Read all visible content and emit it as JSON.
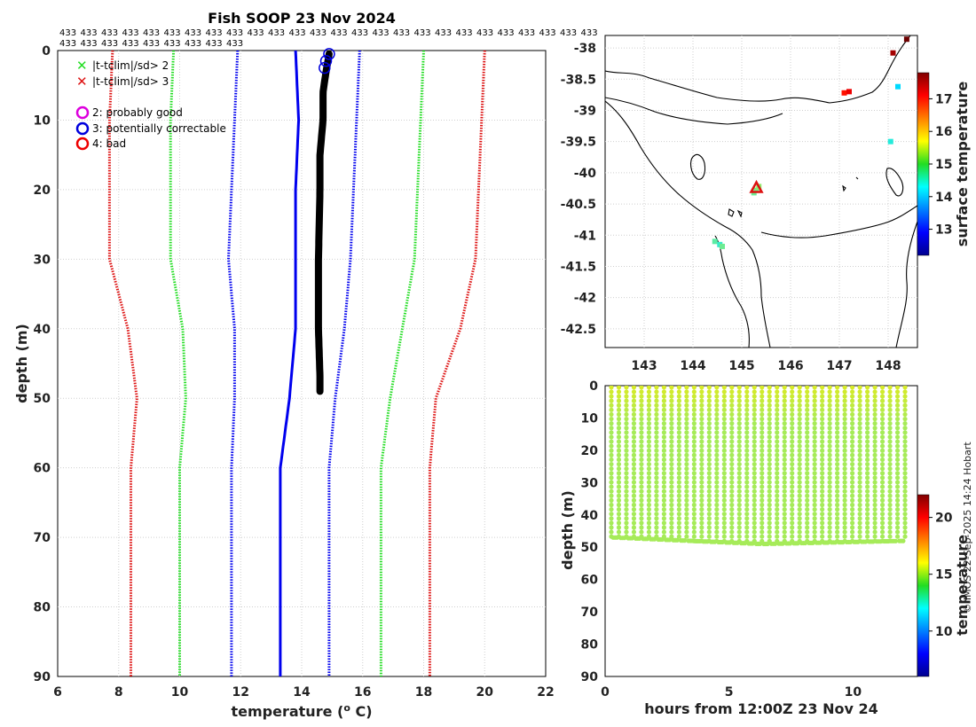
{
  "title": "Fish SOOP 23 Nov 2024",
  "profile_ids_row1": [
    "433",
    "433",
    "433",
    "433",
    "433",
    "433",
    "433",
    "433",
    "433",
    "433",
    "433",
    "433",
    "433",
    "433",
    "433",
    "433",
    "433",
    "433",
    "433",
    "433",
    "433",
    "433",
    "433",
    "433",
    "433",
    "433"
  ],
  "profile_ids_row2": [
    "433",
    "433",
    "433",
    "433",
    "433",
    "433",
    "433",
    "433",
    "433"
  ],
  "credit": "© IMOS 22-Sep-2025 14:24 Hobart",
  "colors": {
    "sd2": "#22dd22",
    "sd3": "#dd1111",
    "qc2": "#dd00dd",
    "qc3": "#0000dd",
    "qc4": "#ee0000",
    "profile": "#000000",
    "clim": "#0000ee"
  },
  "legend": {
    "sd2": "|t-tclim|/sd> 2",
    "sd3": "|t-tclim|/sd> 3",
    "qc2": "2: probably good",
    "qc3": "3: potentially correctable",
    "qc4": "4: bad"
  },
  "chart_data": [
    {
      "type": "line",
      "name": "temperature-profile",
      "xlabel": "temperature (°C)",
      "ylabel": "depth (m)",
      "xlim": [
        6,
        22
      ],
      "ylim": [
        90,
        0
      ],
      "xticks": [
        6,
        8,
        10,
        12,
        14,
        16,
        18,
        20,
        22
      ],
      "yticks": [
        0,
        10,
        20,
        30,
        40,
        50,
        60,
        70,
        80,
        90
      ],
      "grid": true,
      "series": [
        {
          "name": "climatology -3sd",
          "color": "#dd1111",
          "style": "dotted",
          "points": [
            [
              7.8,
              0
            ],
            [
              7.7,
              10
            ],
            [
              7.7,
              20
            ],
            [
              7.7,
              30
            ],
            [
              8.3,
              40
            ],
            [
              8.6,
              50
            ],
            [
              8.4,
              60
            ],
            [
              8.4,
              70
            ],
            [
              8.4,
              80
            ],
            [
              8.4,
              90
            ]
          ]
        },
        {
          "name": "climatology -2sd",
          "color": "#22dd22",
          "style": "dotted",
          "points": [
            [
              9.8,
              0
            ],
            [
              9.7,
              10
            ],
            [
              9.7,
              20
            ],
            [
              9.7,
              30
            ],
            [
              10.1,
              40
            ],
            [
              10.2,
              50
            ],
            [
              10.0,
              60
            ],
            [
              10.0,
              70
            ],
            [
              10.0,
              80
            ],
            [
              10.0,
              90
            ]
          ]
        },
        {
          "name": "climatology -1sd",
          "color": "#0000ee",
          "style": "dotted",
          "points": [
            [
              11.9,
              0
            ],
            [
              11.8,
              10
            ],
            [
              11.7,
              20
            ],
            [
              11.6,
              30
            ],
            [
              11.8,
              40
            ],
            [
              11.8,
              50
            ],
            [
              11.7,
              60
            ],
            [
              11.7,
              70
            ],
            [
              11.7,
              80
            ],
            [
              11.7,
              90
            ]
          ]
        },
        {
          "name": "climatology mean",
          "color": "#0000ee",
          "style": "solid",
          "points": [
            [
              13.8,
              0
            ],
            [
              13.9,
              10
            ],
            [
              13.8,
              20
            ],
            [
              13.8,
              30
            ],
            [
              13.8,
              40
            ],
            [
              13.6,
              50
            ],
            [
              13.3,
              60
            ],
            [
              13.3,
              70
            ],
            [
              13.3,
              80
            ],
            [
              13.3,
              90
            ]
          ]
        },
        {
          "name": "climatology +1sd",
          "color": "#0000ee",
          "style": "dotted",
          "points": [
            [
              15.9,
              0
            ],
            [
              15.8,
              10
            ],
            [
              15.7,
              20
            ],
            [
              15.6,
              30
            ],
            [
              15.4,
              40
            ],
            [
              15.1,
              50
            ],
            [
              14.9,
              60
            ],
            [
              14.9,
              70
            ],
            [
              14.9,
              80
            ],
            [
              14.9,
              90
            ]
          ]
        },
        {
          "name": "climatology +2sd",
          "color": "#22dd22",
          "style": "dotted",
          "points": [
            [
              18.0,
              0
            ],
            [
              17.9,
              10
            ],
            [
              17.8,
              20
            ],
            [
              17.7,
              30
            ],
            [
              17.3,
              40
            ],
            [
              16.9,
              50
            ],
            [
              16.6,
              60
            ],
            [
              16.6,
              70
            ],
            [
              16.6,
              80
            ],
            [
              16.6,
              90
            ]
          ]
        },
        {
          "name": "climatology +3sd",
          "color": "#dd1111",
          "style": "dotted",
          "points": [
            [
              20.0,
              0
            ],
            [
              19.9,
              10
            ],
            [
              19.8,
              20
            ],
            [
              19.7,
              30
            ],
            [
              19.2,
              40
            ],
            [
              18.4,
              50
            ],
            [
              18.2,
              60
            ],
            [
              18.2,
              70
            ],
            [
              18.2,
              80
            ],
            [
              18.2,
              90
            ]
          ]
        },
        {
          "name": "observed profiles",
          "color": "#000000",
          "style": "thick",
          "points": [
            [
              14.9,
              0.5
            ],
            [
              14.8,
              3
            ],
            [
              14.7,
              6
            ],
            [
              14.7,
              10
            ],
            [
              14.6,
              15
            ],
            [
              14.6,
              20
            ],
            [
              14.55,
              30
            ],
            [
              14.55,
              40
            ],
            [
              14.6,
              47
            ],
            [
              14.6,
              49
            ]
          ]
        }
      ],
      "flag_markers": [
        {
          "flag": "qc3",
          "temperature": 14.9,
          "depth": 0.5
        },
        {
          "flag": "qc3",
          "temperature": 14.8,
          "depth": 1.5
        },
        {
          "flag": "qc3",
          "temperature": 14.75,
          "depth": 2.5
        }
      ]
    },
    {
      "type": "scatter",
      "name": "map",
      "colorbar_label": "surface temperature",
      "xlim": [
        142.2,
        148.6
      ],
      "ylim": [
        -42.8,
        -37.8
      ],
      "xticks": [
        143,
        144,
        145,
        146,
        147,
        148
      ],
      "yticks": [
        -38,
        -38.5,
        -39,
        -39.5,
        -40,
        -40.5,
        -41,
        -41.5,
        -42,
        -42.5
      ],
      "colorbar_ticks": [
        13,
        14,
        15,
        16,
        17
      ],
      "colorbar_range": [
        12.2,
        17.8
      ],
      "points": [
        {
          "lon": 145.3,
          "lat": -40.28,
          "t": 15.0
        },
        {
          "lon": 145.35,
          "lat": -40.22,
          "t": 15.1
        },
        {
          "lon": 145.25,
          "lat": -40.32,
          "t": 14.9
        },
        {
          "lon": 144.45,
          "lat": -41.1,
          "t": 14.8
        },
        {
          "lon": 144.55,
          "lat": -41.15,
          "t": 14.6
        },
        {
          "lon": 144.6,
          "lat": -41.18,
          "t": 14.9
        },
        {
          "lon": 147.1,
          "lat": -38.72,
          "t": 17.0
        },
        {
          "lon": 147.2,
          "lat": -38.7,
          "t": 17.2
        },
        {
          "lon": 148.05,
          "lat": -39.5,
          "t": 14.5
        },
        {
          "lon": 148.2,
          "lat": -38.62,
          "t": 14.2
        },
        {
          "lon": 148.38,
          "lat": -37.86,
          "t": 17.9
        },
        {
          "lon": 148.1,
          "lat": -38.08,
          "t": 17.6
        }
      ],
      "markers": [
        {
          "symbol": "triangle",
          "lon": 145.3,
          "lat": -40.25,
          "color": "#dd1111"
        }
      ]
    },
    {
      "type": "scatter",
      "name": "time-depth",
      "xlabel": "hours from 12:00Z 23 Nov 24",
      "ylabel": "depth (m)",
      "colorbar_label": "temperature",
      "xlim": [
        0,
        12.6
      ],
      "ylim": [
        90,
        0
      ],
      "xticks": [
        0,
        5,
        10
      ],
      "yticks": [
        0,
        10,
        20,
        30,
        40,
        50,
        60,
        70,
        80,
        90
      ],
      "colorbar_ticks": [
        10,
        15,
        20
      ],
      "colorbar_range": [
        6,
        22
      ],
      "profile_count": 40,
      "first_profile_hour": 0.25,
      "last_profile_hour": 12.1,
      "max_depth_start": 47,
      "max_depth_mid": 49,
      "max_depth_end": 48,
      "surface_temperature": 15.4,
      "deep_temperature": 14.6
    }
  ]
}
